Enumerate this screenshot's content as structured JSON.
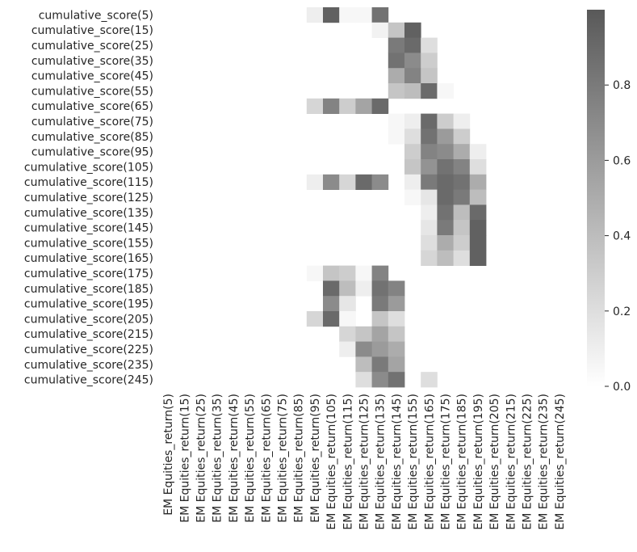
{
  "chart_data": {
    "type": "heatmap",
    "title": "",
    "xlabel": "",
    "ylabel": "",
    "row_labels": [
      "cumulative_score(5)",
      "cumulative_score(15)",
      "cumulative_score(25)",
      "cumulative_score(35)",
      "cumulative_score(45)",
      "cumulative_score(55)",
      "cumulative_score(65)",
      "cumulative_score(75)",
      "cumulative_score(85)",
      "cumulative_score(95)",
      "cumulative_score(105)",
      "cumulative_score(115)",
      "cumulative_score(125)",
      "cumulative_score(135)",
      "cumulative_score(145)",
      "cumulative_score(155)",
      "cumulative_score(165)",
      "cumulative_score(175)",
      "cumulative_score(185)",
      "cumulative_score(195)",
      "cumulative_score(205)",
      "cumulative_score(215)",
      "cumulative_score(225)",
      "cumulative_score(235)",
      "cumulative_score(245)"
    ],
    "col_labels": [
      "EM Equities_return(5)",
      "EM Equities_return(15)",
      "EM Equities_return(25)",
      "EM Equities_return(35)",
      "EM Equities_return(45)",
      "EM Equities_return(55)",
      "EM Equities_return(65)",
      "EM Equities_return(75)",
      "EM Equities_return(85)",
      "EM Equities_return(95)",
      "EM Equities_return(105)",
      "EM Equities_return(115)",
      "EM Equities_return(125)",
      "EM Equities_return(135)",
      "EM Equities_return(145)",
      "EM Equities_return(155)",
      "EM Equities_return(165)",
      "EM Equities_return(175)",
      "EM Equities_return(185)",
      "EM Equities_return(195)",
      "EM Equities_return(205)",
      "EM Equities_return(215)",
      "EM Equities_return(225)",
      "EM Equities_return(235)",
      "EM Equities_return(245)"
    ],
    "colorbar": {
      "range": [
        0,
        1
      ],
      "ticks": [
        0.0,
        0.2,
        0.4,
        0.6,
        0.8
      ],
      "tick_labels": [
        "0.0",
        "0.2",
        "0.4",
        "0.6",
        "0.8"
      ]
    },
    "colors": {
      "low": "#ffffff",
      "high": "#595959",
      "text": "#262626"
    },
    "cells": [
      {
        "r": 0,
        "c": 9,
        "v": 0.1
      },
      {
        "r": 0,
        "c": 10,
        "v": 0.95
      },
      {
        "r": 0,
        "c": 11,
        "v": 0.05
      },
      {
        "r": 0,
        "c": 12,
        "v": 0.05
      },
      {
        "r": 0,
        "c": 13,
        "v": 0.85
      },
      {
        "r": 1,
        "c": 13,
        "v": 0.08
      },
      {
        "r": 1,
        "c": 14,
        "v": 0.35
      },
      {
        "r": 1,
        "c": 15,
        "v": 0.95
      },
      {
        "r": 2,
        "c": 14,
        "v": 0.8
      },
      {
        "r": 2,
        "c": 15,
        "v": 0.9
      },
      {
        "r": 2,
        "c": 16,
        "v": 0.2
      },
      {
        "r": 3,
        "c": 14,
        "v": 0.85
      },
      {
        "r": 3,
        "c": 15,
        "v": 0.7
      },
      {
        "r": 3,
        "c": 16,
        "v": 0.3
      },
      {
        "r": 4,
        "c": 14,
        "v": 0.5
      },
      {
        "r": 4,
        "c": 15,
        "v": 0.75
      },
      {
        "r": 4,
        "c": 16,
        "v": 0.35
      },
      {
        "r": 5,
        "c": 14,
        "v": 0.35
      },
      {
        "r": 5,
        "c": 15,
        "v": 0.4
      },
      {
        "r": 5,
        "c": 16,
        "v": 0.9
      },
      {
        "r": 5,
        "c": 17,
        "v": 0.05
      },
      {
        "r": 6,
        "c": 9,
        "v": 0.25
      },
      {
        "r": 6,
        "c": 10,
        "v": 0.75
      },
      {
        "r": 6,
        "c": 11,
        "v": 0.3
      },
      {
        "r": 6,
        "c": 12,
        "v": 0.55
      },
      {
        "r": 6,
        "c": 13,
        "v": 0.9
      },
      {
        "r": 7,
        "c": 14,
        "v": 0.05
      },
      {
        "r": 7,
        "c": 15,
        "v": 0.1
      },
      {
        "r": 7,
        "c": 16,
        "v": 0.9
      },
      {
        "r": 7,
        "c": 17,
        "v": 0.3
      },
      {
        "r": 7,
        "c": 18,
        "v": 0.1
      },
      {
        "r": 8,
        "c": 14,
        "v": 0.05
      },
      {
        "r": 8,
        "c": 15,
        "v": 0.2
      },
      {
        "r": 8,
        "c": 16,
        "v": 0.85
      },
      {
        "r": 8,
        "c": 17,
        "v": 0.6
      },
      {
        "r": 8,
        "c": 18,
        "v": 0.3
      },
      {
        "r": 9,
        "c": 15,
        "v": 0.3
      },
      {
        "r": 9,
        "c": 16,
        "v": 0.75
      },
      {
        "r": 9,
        "c": 17,
        "v": 0.7
      },
      {
        "r": 9,
        "c": 18,
        "v": 0.5
      },
      {
        "r": 9,
        "c": 19,
        "v": 0.1
      },
      {
        "r": 10,
        "c": 15,
        "v": 0.35
      },
      {
        "r": 10,
        "c": 16,
        "v": 0.65
      },
      {
        "r": 10,
        "c": 17,
        "v": 0.85
      },
      {
        "r": 10,
        "c": 18,
        "v": 0.75
      },
      {
        "r": 10,
        "c": 19,
        "v": 0.2
      },
      {
        "r": 11,
        "c": 9,
        "v": 0.1
      },
      {
        "r": 11,
        "c": 10,
        "v": 0.7
      },
      {
        "r": 11,
        "c": 11,
        "v": 0.25
      },
      {
        "r": 11,
        "c": 12,
        "v": 0.9
      },
      {
        "r": 11,
        "c": 13,
        "v": 0.7
      },
      {
        "r": 11,
        "c": 15,
        "v": 0.1
      },
      {
        "r": 11,
        "c": 16,
        "v": 0.8
      },
      {
        "r": 11,
        "c": 17,
        "v": 0.9
      },
      {
        "r": 11,
        "c": 18,
        "v": 0.85
      },
      {
        "r": 11,
        "c": 19,
        "v": 0.5
      },
      {
        "r": 12,
        "c": 15,
        "v": 0.05
      },
      {
        "r": 12,
        "c": 16,
        "v": 0.15
      },
      {
        "r": 12,
        "c": 17,
        "v": 0.9
      },
      {
        "r": 12,
        "c": 18,
        "v": 0.8
      },
      {
        "r": 12,
        "c": 19,
        "v": 0.4
      },
      {
        "r": 13,
        "c": 16,
        "v": 0.1
      },
      {
        "r": 13,
        "c": 17,
        "v": 0.85
      },
      {
        "r": 13,
        "c": 18,
        "v": 0.4
      },
      {
        "r": 13,
        "c": 19,
        "v": 0.9
      },
      {
        "r": 14,
        "c": 16,
        "v": 0.15
      },
      {
        "r": 14,
        "c": 17,
        "v": 0.8
      },
      {
        "r": 14,
        "c": 18,
        "v": 0.35
      },
      {
        "r": 14,
        "c": 19,
        "v": 0.95
      },
      {
        "r": 15,
        "c": 16,
        "v": 0.2
      },
      {
        "r": 15,
        "c": 17,
        "v": 0.5
      },
      {
        "r": 15,
        "c": 18,
        "v": 0.3
      },
      {
        "r": 15,
        "c": 19,
        "v": 0.95
      },
      {
        "r": 16,
        "c": 16,
        "v": 0.25
      },
      {
        "r": 16,
        "c": 17,
        "v": 0.4
      },
      {
        "r": 16,
        "c": 18,
        "v": 0.2
      },
      {
        "r": 16,
        "c": 19,
        "v": 0.95
      },
      {
        "r": 17,
        "c": 9,
        "v": 0.05
      },
      {
        "r": 17,
        "c": 10,
        "v": 0.35
      },
      {
        "r": 17,
        "c": 11,
        "v": 0.3
      },
      {
        "r": 17,
        "c": 12,
        "v": 0.05
      },
      {
        "r": 17,
        "c": 13,
        "v": 0.75
      },
      {
        "r": 18,
        "c": 10,
        "v": 0.9
      },
      {
        "r": 18,
        "c": 11,
        "v": 0.4
      },
      {
        "r": 18,
        "c": 12,
        "v": 0.1
      },
      {
        "r": 18,
        "c": 13,
        "v": 0.85
      },
      {
        "r": 18,
        "c": 14,
        "v": 0.75
      },
      {
        "r": 19,
        "c": 10,
        "v": 0.7
      },
      {
        "r": 19,
        "c": 11,
        "v": 0.15
      },
      {
        "r": 19,
        "c": 13,
        "v": 0.8
      },
      {
        "r": 19,
        "c": 14,
        "v": 0.6
      },
      {
        "r": 20,
        "c": 9,
        "v": 0.25
      },
      {
        "r": 20,
        "c": 10,
        "v": 0.9
      },
      {
        "r": 20,
        "c": 11,
        "v": 0.05
      },
      {
        "r": 20,
        "c": 13,
        "v": 0.35
      },
      {
        "r": 20,
        "c": 14,
        "v": 0.2
      },
      {
        "r": 21,
        "c": 11,
        "v": 0.25
      },
      {
        "r": 21,
        "c": 12,
        "v": 0.35
      },
      {
        "r": 21,
        "c": 13,
        "v": 0.55
      },
      {
        "r": 21,
        "c": 14,
        "v": 0.35
      },
      {
        "r": 22,
        "c": 11,
        "v": 0.1
      },
      {
        "r": 22,
        "c": 12,
        "v": 0.7
      },
      {
        "r": 22,
        "c": 13,
        "v": 0.6
      },
      {
        "r": 22,
        "c": 14,
        "v": 0.5
      },
      {
        "r": 23,
        "c": 12,
        "v": 0.4
      },
      {
        "r": 23,
        "c": 13,
        "v": 0.8
      },
      {
        "r": 23,
        "c": 14,
        "v": 0.55
      },
      {
        "r": 24,
        "c": 12,
        "v": 0.2
      },
      {
        "r": 24,
        "c": 13,
        "v": 0.7
      },
      {
        "r": 24,
        "c": 14,
        "v": 0.85
      },
      {
        "r": 24,
        "c": 16,
        "v": 0.2
      }
    ]
  }
}
